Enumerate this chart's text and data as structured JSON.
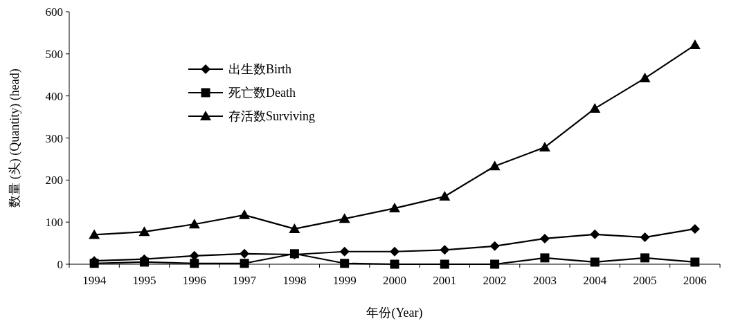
{
  "chart_data": {
    "type": "line",
    "xlabel": "年份(Year)",
    "ylabel": "数量 (头) (Quantity) (head)",
    "categories": [
      "1994",
      "1995",
      "1996",
      "1997",
      "1998",
      "1999",
      "2000",
      "2001",
      "2002",
      "2003",
      "2004",
      "2005",
      "2006"
    ],
    "series": [
      {
        "name": "出生数Birth",
        "color": "#000000",
        "marker": "diamond",
        "values": [
          8,
          12,
          20,
          25,
          23,
          30,
          30,
          34,
          43,
          61,
          71,
          64,
          84
        ]
      },
      {
        "name": "死亡数Death",
        "color": "#000000",
        "marker": "square",
        "values": [
          2,
          5,
          2,
          2,
          25,
          2,
          0,
          0,
          0,
          15,
          5,
          15,
          5
        ]
      },
      {
        "name": "存活数Surviving",
        "color": "#000000",
        "marker": "triangle",
        "values": [
          70,
          77,
          95,
          117,
          84,
          108,
          133,
          161,
          233,
          278,
          370,
          442,
          521
        ]
      }
    ],
    "ylim": [
      0,
      600
    ],
    "yticks": [
      0,
      100,
      200,
      300,
      400,
      500,
      600
    ],
    "legend": "top left",
    "line_style": "solid"
  }
}
